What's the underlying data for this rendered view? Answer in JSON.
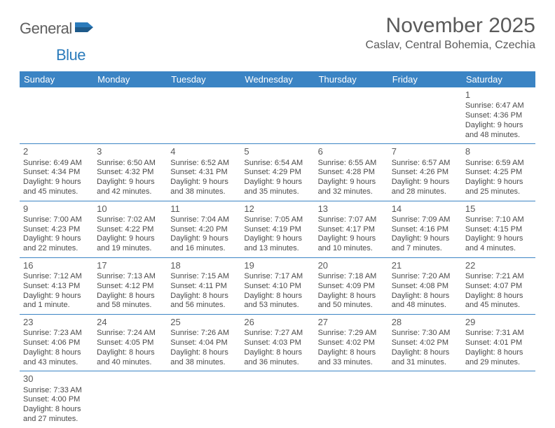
{
  "logo": {
    "text1": "General",
    "text2": "Blue"
  },
  "title": "November 2025",
  "location": "Caslav, Central Bohemia, Czechia",
  "colors": {
    "header_bg": "#3b84c4",
    "header_text": "#ffffff",
    "row_border": "#3b84c4",
    "text": "#4a4a4a",
    "title_color": "#5a5a5a",
    "logo_gray": "#5f5f5f",
    "logo_blue": "#2b7bbb"
  },
  "weekdays": [
    "Sunday",
    "Monday",
    "Tuesday",
    "Wednesday",
    "Thursday",
    "Friday",
    "Saturday"
  ],
  "weeks": [
    [
      null,
      null,
      null,
      null,
      null,
      null,
      {
        "n": "1",
        "sr": "Sunrise: 6:47 AM",
        "ss": "Sunset: 4:36 PM",
        "dl": "Daylight: 9 hours and 48 minutes."
      }
    ],
    [
      {
        "n": "2",
        "sr": "Sunrise: 6:49 AM",
        "ss": "Sunset: 4:34 PM",
        "dl": "Daylight: 9 hours and 45 minutes."
      },
      {
        "n": "3",
        "sr": "Sunrise: 6:50 AM",
        "ss": "Sunset: 4:32 PM",
        "dl": "Daylight: 9 hours and 42 minutes."
      },
      {
        "n": "4",
        "sr": "Sunrise: 6:52 AM",
        "ss": "Sunset: 4:31 PM",
        "dl": "Daylight: 9 hours and 38 minutes."
      },
      {
        "n": "5",
        "sr": "Sunrise: 6:54 AM",
        "ss": "Sunset: 4:29 PM",
        "dl": "Daylight: 9 hours and 35 minutes."
      },
      {
        "n": "6",
        "sr": "Sunrise: 6:55 AM",
        "ss": "Sunset: 4:28 PM",
        "dl": "Daylight: 9 hours and 32 minutes."
      },
      {
        "n": "7",
        "sr": "Sunrise: 6:57 AM",
        "ss": "Sunset: 4:26 PM",
        "dl": "Daylight: 9 hours and 28 minutes."
      },
      {
        "n": "8",
        "sr": "Sunrise: 6:59 AM",
        "ss": "Sunset: 4:25 PM",
        "dl": "Daylight: 9 hours and 25 minutes."
      }
    ],
    [
      {
        "n": "9",
        "sr": "Sunrise: 7:00 AM",
        "ss": "Sunset: 4:23 PM",
        "dl": "Daylight: 9 hours and 22 minutes."
      },
      {
        "n": "10",
        "sr": "Sunrise: 7:02 AM",
        "ss": "Sunset: 4:22 PM",
        "dl": "Daylight: 9 hours and 19 minutes."
      },
      {
        "n": "11",
        "sr": "Sunrise: 7:04 AM",
        "ss": "Sunset: 4:20 PM",
        "dl": "Daylight: 9 hours and 16 minutes."
      },
      {
        "n": "12",
        "sr": "Sunrise: 7:05 AM",
        "ss": "Sunset: 4:19 PM",
        "dl": "Daylight: 9 hours and 13 minutes."
      },
      {
        "n": "13",
        "sr": "Sunrise: 7:07 AM",
        "ss": "Sunset: 4:17 PM",
        "dl": "Daylight: 9 hours and 10 minutes."
      },
      {
        "n": "14",
        "sr": "Sunrise: 7:09 AM",
        "ss": "Sunset: 4:16 PM",
        "dl": "Daylight: 9 hours and 7 minutes."
      },
      {
        "n": "15",
        "sr": "Sunrise: 7:10 AM",
        "ss": "Sunset: 4:15 PM",
        "dl": "Daylight: 9 hours and 4 minutes."
      }
    ],
    [
      {
        "n": "16",
        "sr": "Sunrise: 7:12 AM",
        "ss": "Sunset: 4:13 PM",
        "dl": "Daylight: 9 hours and 1 minute."
      },
      {
        "n": "17",
        "sr": "Sunrise: 7:13 AM",
        "ss": "Sunset: 4:12 PM",
        "dl": "Daylight: 8 hours and 58 minutes."
      },
      {
        "n": "18",
        "sr": "Sunrise: 7:15 AM",
        "ss": "Sunset: 4:11 PM",
        "dl": "Daylight: 8 hours and 56 minutes."
      },
      {
        "n": "19",
        "sr": "Sunrise: 7:17 AM",
        "ss": "Sunset: 4:10 PM",
        "dl": "Daylight: 8 hours and 53 minutes."
      },
      {
        "n": "20",
        "sr": "Sunrise: 7:18 AM",
        "ss": "Sunset: 4:09 PM",
        "dl": "Daylight: 8 hours and 50 minutes."
      },
      {
        "n": "21",
        "sr": "Sunrise: 7:20 AM",
        "ss": "Sunset: 4:08 PM",
        "dl": "Daylight: 8 hours and 48 minutes."
      },
      {
        "n": "22",
        "sr": "Sunrise: 7:21 AM",
        "ss": "Sunset: 4:07 PM",
        "dl": "Daylight: 8 hours and 45 minutes."
      }
    ],
    [
      {
        "n": "23",
        "sr": "Sunrise: 7:23 AM",
        "ss": "Sunset: 4:06 PM",
        "dl": "Daylight: 8 hours and 43 minutes."
      },
      {
        "n": "24",
        "sr": "Sunrise: 7:24 AM",
        "ss": "Sunset: 4:05 PM",
        "dl": "Daylight: 8 hours and 40 minutes."
      },
      {
        "n": "25",
        "sr": "Sunrise: 7:26 AM",
        "ss": "Sunset: 4:04 PM",
        "dl": "Daylight: 8 hours and 38 minutes."
      },
      {
        "n": "26",
        "sr": "Sunrise: 7:27 AM",
        "ss": "Sunset: 4:03 PM",
        "dl": "Daylight: 8 hours and 36 minutes."
      },
      {
        "n": "27",
        "sr": "Sunrise: 7:29 AM",
        "ss": "Sunset: 4:02 PM",
        "dl": "Daylight: 8 hours and 33 minutes."
      },
      {
        "n": "28",
        "sr": "Sunrise: 7:30 AM",
        "ss": "Sunset: 4:02 PM",
        "dl": "Daylight: 8 hours and 31 minutes."
      },
      {
        "n": "29",
        "sr": "Sunrise: 7:31 AM",
        "ss": "Sunset: 4:01 PM",
        "dl": "Daylight: 8 hours and 29 minutes."
      }
    ],
    [
      {
        "n": "30",
        "sr": "Sunrise: 7:33 AM",
        "ss": "Sunset: 4:00 PM",
        "dl": "Daylight: 8 hours and 27 minutes."
      },
      null,
      null,
      null,
      null,
      null,
      null
    ]
  ]
}
